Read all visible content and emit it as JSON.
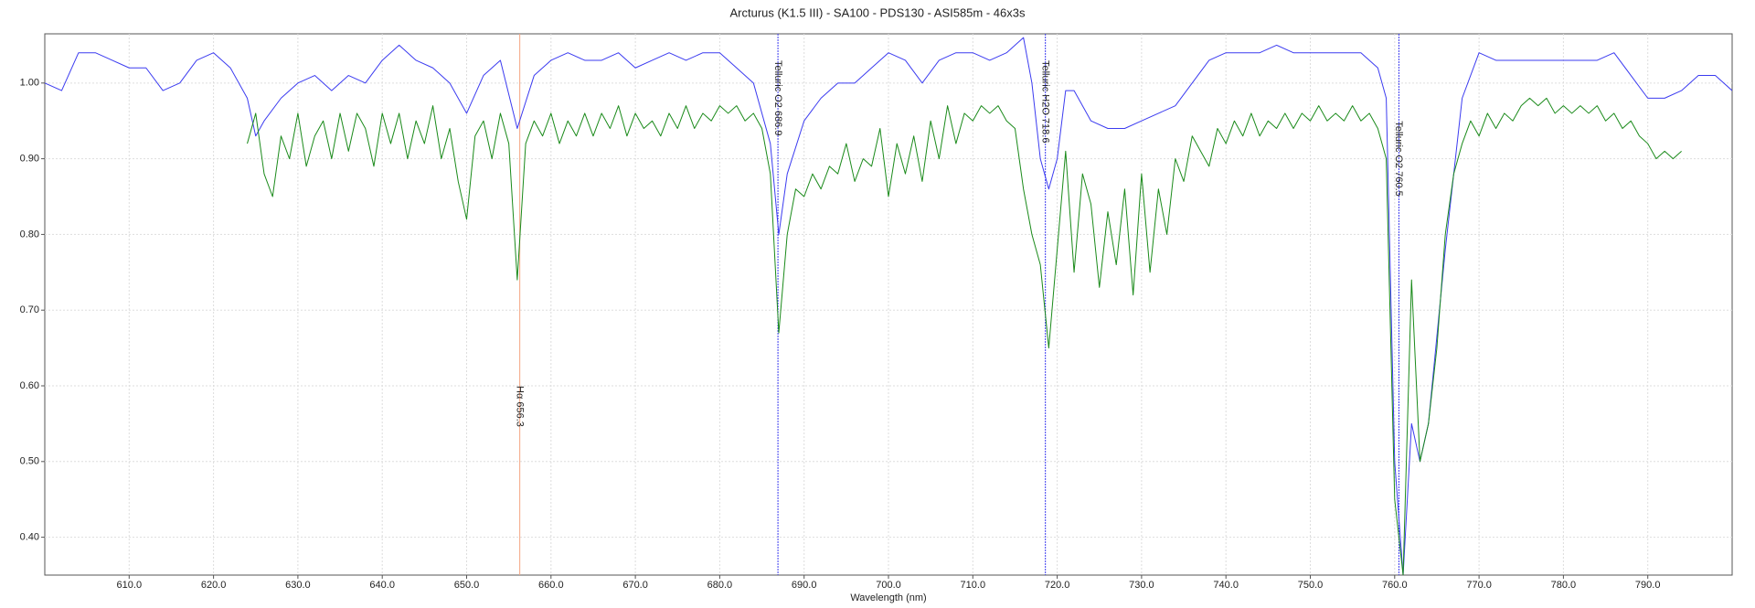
{
  "chart_data": {
    "type": "line",
    "title": "Arcturus (K1.5 III) - SA100 - PDS130 - ASI585m - 46x3s",
    "x_label": "Wavelength (nm)",
    "xlim": [
      600,
      800
    ],
    "ylim": [
      0.35,
      1.065
    ],
    "xticks": [
      {
        "value": 610,
        "label": "610.0"
      },
      {
        "value": 620,
        "label": "620.0"
      },
      {
        "value": 630,
        "label": "630.0"
      },
      {
        "value": 640,
        "label": "640.0"
      },
      {
        "value": 650,
        "label": "650.0"
      },
      {
        "value": 660,
        "label": "660.0"
      },
      {
        "value": 670,
        "label": "670.0"
      },
      {
        "value": 680,
        "label": "680.0"
      },
      {
        "value": 690,
        "label": "690.0"
      },
      {
        "value": 700,
        "label": "700.0"
      },
      {
        "value": 710,
        "label": "710.0"
      },
      {
        "value": 720,
        "label": "720.0"
      },
      {
        "value": 730,
        "label": "730.0"
      },
      {
        "value": 740,
        "label": "740.0"
      },
      {
        "value": 750,
        "label": "750.0"
      },
      {
        "value": 760,
        "label": "760.0"
      },
      {
        "value": 770,
        "label": "770.0"
      },
      {
        "value": 780,
        "label": "780.0"
      },
      {
        "value": 790,
        "label": "790.0"
      }
    ],
    "yticks": [
      {
        "value": 0.4,
        "label": "0.40"
      },
      {
        "value": 0.5,
        "label": "0.50"
      },
      {
        "value": 0.6,
        "label": "0.60"
      },
      {
        "value": 0.7,
        "label": "0.70"
      },
      {
        "value": 0.8,
        "label": "0.80"
      },
      {
        "value": 0.9,
        "label": "0.90"
      },
      {
        "value": 1.0,
        "label": "1.00"
      }
    ],
    "grid": true,
    "series": [
      {
        "color": "#3b3bf0",
        "x": [
          600,
          602,
          604,
          606,
          608,
          610,
          612,
          614,
          616,
          618,
          620,
          622,
          624,
          625,
          626,
          628,
          630,
          632,
          634,
          636,
          638,
          640,
          642,
          644,
          646,
          648,
          650,
          652,
          654,
          656,
          658,
          660,
          662,
          664,
          666,
          668,
          670,
          672,
          674,
          676,
          678,
          680,
          682,
          684,
          686,
          687,
          688,
          690,
          692,
          694,
          696,
          698,
          700,
          702,
          704,
          706,
          708,
          710,
          712,
          714,
          716,
          717,
          718,
          719,
          720,
          721,
          722,
          724,
          726,
          728,
          730,
          732,
          734,
          736,
          738,
          740,
          742,
          744,
          746,
          748,
          750,
          752,
          754,
          756,
          758,
          759,
          760,
          761,
          762,
          763,
          764,
          766,
          768,
          770,
          772,
          774,
          776,
          778,
          780,
          782,
          784,
          786,
          788,
          790,
          792,
          794,
          796,
          798,
          800
        ],
        "values": [
          1.0,
          0.99,
          1.04,
          1.04,
          1.03,
          1.02,
          1.02,
          0.99,
          1.0,
          1.03,
          1.04,
          1.02,
          0.98,
          0.93,
          0.95,
          0.98,
          1.0,
          1.01,
          0.99,
          1.01,
          1.0,
          1.03,
          1.05,
          1.03,
          1.02,
          1.0,
          0.96,
          1.01,
          1.03,
          0.94,
          1.01,
          1.03,
          1.04,
          1.03,
          1.03,
          1.04,
          1.02,
          1.03,
          1.04,
          1.03,
          1.04,
          1.04,
          1.02,
          1.0,
          0.92,
          0.8,
          0.88,
          0.95,
          0.98,
          1.0,
          1.0,
          1.02,
          1.04,
          1.03,
          1.0,
          1.03,
          1.04,
          1.04,
          1.03,
          1.04,
          1.06,
          1.0,
          0.9,
          0.86,
          0.9,
          0.99,
          0.99,
          0.95,
          0.94,
          0.94,
          0.95,
          0.96,
          0.97,
          1.0,
          1.03,
          1.04,
          1.04,
          1.04,
          1.05,
          1.04,
          1.04,
          1.04,
          1.04,
          1.04,
          1.02,
          0.98,
          0.5,
          0.35,
          0.55,
          0.5,
          0.55,
          0.78,
          0.98,
          1.04,
          1.03,
          1.03,
          1.03,
          1.03,
          1.03,
          1.03,
          1.03,
          1.04,
          1.01,
          0.98,
          0.98,
          0.99,
          1.01,
          1.01,
          0.99
        ]
      },
      {
        "color": "#1a8a1a",
        "x": [
          624,
          625,
          626,
          627,
          628,
          629,
          630,
          631,
          632,
          633,
          634,
          635,
          636,
          637,
          638,
          639,
          640,
          641,
          642,
          643,
          644,
          645,
          646,
          647,
          648,
          649,
          650,
          651,
          652,
          653,
          654,
          655,
          656,
          657,
          658,
          659,
          660,
          661,
          662,
          663,
          664,
          665,
          666,
          667,
          668,
          669,
          670,
          671,
          672,
          673,
          674,
          675,
          676,
          677,
          678,
          679,
          680,
          681,
          682,
          683,
          684,
          685,
          686,
          687,
          688,
          689,
          690,
          691,
          692,
          693,
          694,
          695,
          696,
          697,
          698,
          699,
          700,
          701,
          702,
          703,
          704,
          705,
          706,
          707,
          708,
          709,
          710,
          711,
          712,
          713,
          714,
          715,
          716,
          717,
          718,
          719,
          720,
          721,
          722,
          723,
          724,
          725,
          726,
          727,
          728,
          729,
          730,
          731,
          732,
          733,
          734,
          735,
          736,
          737,
          738,
          739,
          740,
          741,
          742,
          743,
          744,
          745,
          746,
          747,
          748,
          749,
          750,
          751,
          752,
          753,
          754,
          755,
          756,
          757,
          758,
          759,
          760,
          761,
          762,
          763,
          764,
          765,
          766,
          767,
          768,
          769,
          770,
          771,
          772,
          773,
          774,
          775,
          776,
          777,
          778,
          779,
          780,
          781,
          782,
          783,
          784,
          785,
          786,
          787,
          788,
          789,
          790,
          791,
          792,
          793,
          794
        ],
        "values": [
          0.92,
          0.96,
          0.88,
          0.85,
          0.93,
          0.9,
          0.96,
          0.89,
          0.93,
          0.95,
          0.9,
          0.96,
          0.91,
          0.96,
          0.94,
          0.89,
          0.96,
          0.92,
          0.96,
          0.9,
          0.95,
          0.92,
          0.97,
          0.9,
          0.94,
          0.87,
          0.82,
          0.93,
          0.95,
          0.9,
          0.96,
          0.92,
          0.74,
          0.92,
          0.95,
          0.93,
          0.96,
          0.92,
          0.95,
          0.93,
          0.96,
          0.93,
          0.96,
          0.94,
          0.97,
          0.93,
          0.96,
          0.94,
          0.95,
          0.93,
          0.96,
          0.94,
          0.97,
          0.94,
          0.96,
          0.95,
          0.97,
          0.96,
          0.97,
          0.95,
          0.96,
          0.94,
          0.88,
          0.67,
          0.8,
          0.86,
          0.85,
          0.88,
          0.86,
          0.89,
          0.88,
          0.92,
          0.87,
          0.9,
          0.89,
          0.94,
          0.85,
          0.92,
          0.88,
          0.93,
          0.87,
          0.95,
          0.9,
          0.97,
          0.92,
          0.96,
          0.95,
          0.97,
          0.96,
          0.97,
          0.95,
          0.94,
          0.86,
          0.8,
          0.76,
          0.65,
          0.78,
          0.91,
          0.75,
          0.88,
          0.84,
          0.73,
          0.83,
          0.76,
          0.86,
          0.72,
          0.88,
          0.75,
          0.86,
          0.8,
          0.9,
          0.87,
          0.93,
          0.91,
          0.89,
          0.94,
          0.92,
          0.95,
          0.93,
          0.96,
          0.93,
          0.95,
          0.94,
          0.96,
          0.94,
          0.96,
          0.95,
          0.97,
          0.95,
          0.96,
          0.95,
          0.97,
          0.95,
          0.96,
          0.94,
          0.9,
          0.45,
          0.35,
          0.74,
          0.5,
          0.55,
          0.65,
          0.8,
          0.88,
          0.92,
          0.95,
          0.93,
          0.96,
          0.94,
          0.96,
          0.95,
          0.97,
          0.98,
          0.97,
          0.98,
          0.96,
          0.97,
          0.96,
          0.97,
          0.96,
          0.97,
          0.95,
          0.96,
          0.94,
          0.95,
          0.93,
          0.92,
          0.9,
          0.91,
          0.9,
          0.91
        ]
      }
    ],
    "annotations": [
      {
        "x": 656.3,
        "label": "Hα 656.3",
        "color": "#f4a582",
        "dashed": false,
        "label_y": 0.6
      },
      {
        "x": 686.9,
        "label": "Telluric O2 686.9",
        "color": "#3b3bf0",
        "dashed": true,
        "label_y": 1.03
      },
      {
        "x": 718.6,
        "label": "Telluric H2O 718.6",
        "color": "#3b3bf0",
        "dashed": true,
        "label_y": 1.03
      },
      {
        "x": 760.5,
        "label": "Telluric O2 760.5",
        "color": "#3b3bf0",
        "dashed": true,
        "label_y": 0.95
      }
    ]
  }
}
